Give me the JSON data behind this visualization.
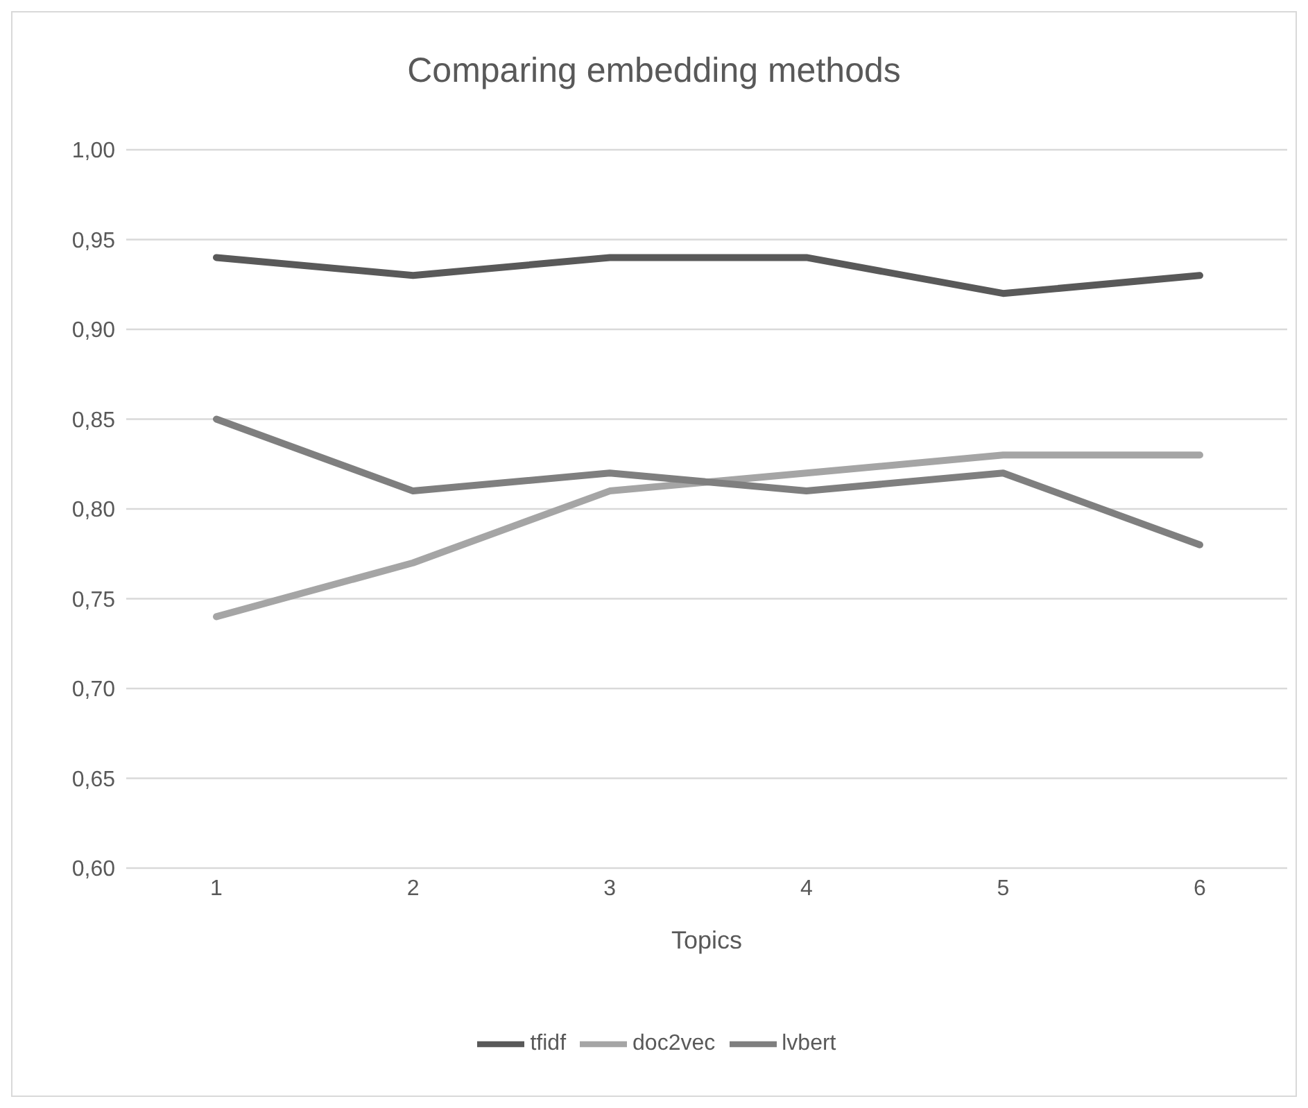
{
  "chart_data": {
    "type": "line",
    "title": "Comparing embedding methods",
    "xlabel": "Topics",
    "categories": [
      "1",
      "2",
      "3",
      "4",
      "5",
      "6"
    ],
    "series": [
      {
        "name": "tfidf",
        "color": "#595959",
        "values": [
          0.94,
          0.93,
          0.94,
          0.94,
          0.92,
          0.93
        ]
      },
      {
        "name": "doc2vec",
        "color": "#a5a5a5",
        "values": [
          0.74,
          0.77,
          0.81,
          0.82,
          0.83,
          0.83
        ]
      },
      {
        "name": "lvbert",
        "color": "#7f7f7f",
        "values": [
          0.85,
          0.81,
          0.82,
          0.81,
          0.82,
          0.78
        ]
      }
    ],
    "ylim": [
      0.6,
      1.0
    ],
    "yticks": [
      {
        "value": 0.6,
        "label": "0,60"
      },
      {
        "value": 0.65,
        "label": "0,65"
      },
      {
        "value": 0.7,
        "label": "0,70"
      },
      {
        "value": 0.75,
        "label": "0,75"
      },
      {
        "value": 0.8,
        "label": "0,80"
      },
      {
        "value": 0.85,
        "label": "0,85"
      },
      {
        "value": 0.9,
        "label": "0,90"
      },
      {
        "value": 0.95,
        "label": "0,95"
      },
      {
        "value": 1.0,
        "label": "1,00"
      }
    ],
    "grid": "y",
    "legend": "bottom",
    "marker": "none",
    "line_style": "solid"
  }
}
